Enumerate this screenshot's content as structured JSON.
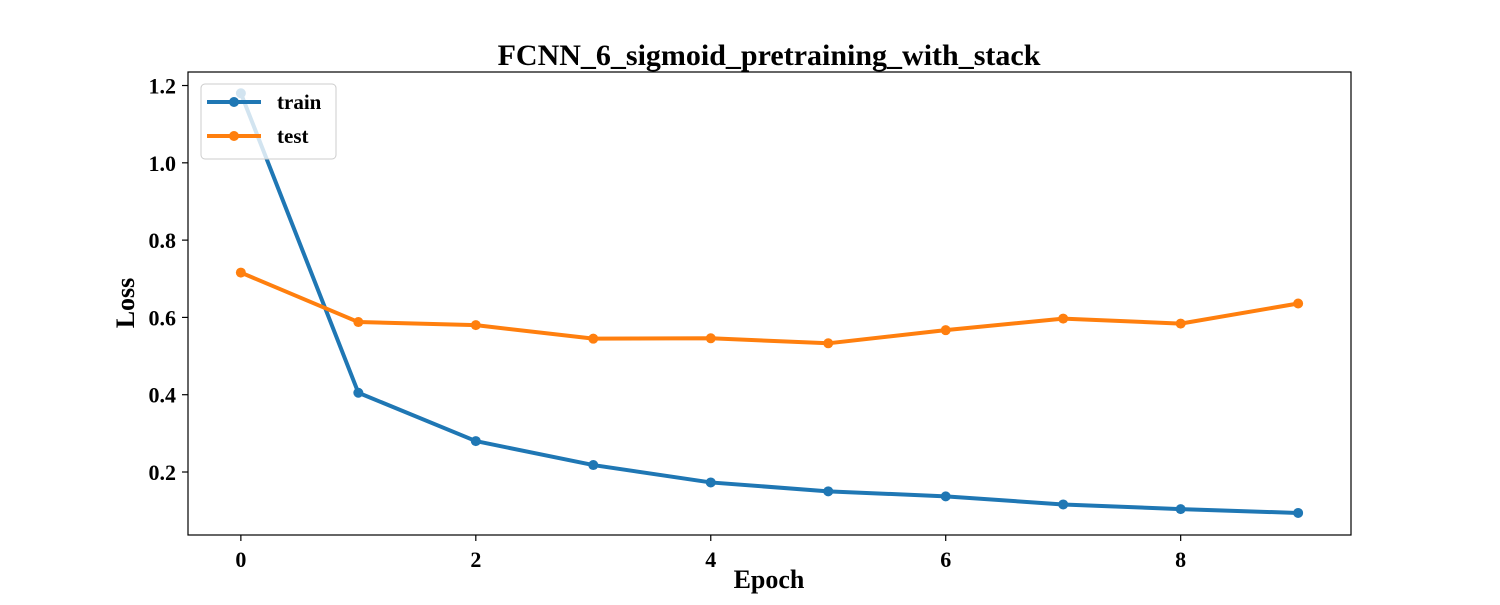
{
  "chart_data": {
    "type": "line",
    "title": "FCNN_6_sigmoid_pretraining_with_stack",
    "xlabel": "Epoch",
    "ylabel": "Loss",
    "xlim": [
      -0.45,
      9.45
    ],
    "ylim": [
      0.037,
      1.235
    ],
    "x": [
      0,
      1,
      2,
      3,
      4,
      5,
      6,
      7,
      8,
      9
    ],
    "x_ticks": [
      0,
      2,
      4,
      6,
      8
    ],
    "x_tick_labels": [
      "0",
      "2",
      "4",
      "6",
      "8"
    ],
    "y_ticks": [
      0.2,
      0.4,
      0.6,
      0.8,
      1.0,
      1.2
    ],
    "y_tick_labels": [
      "0.2",
      "0.4",
      "0.6",
      "0.8",
      "1.0",
      "1.2"
    ],
    "grid": false,
    "legend_position": "upper left",
    "series": [
      {
        "name": "train",
        "color": "#1f77b4",
        "marker": "circle",
        "values": [
          1.18,
          0.405,
          0.28,
          0.218,
          0.173,
          0.15,
          0.137,
          0.116,
          0.104,
          0.094
        ]
      },
      {
        "name": "test",
        "color": "#ff7f0e",
        "marker": "circle",
        "values": [
          0.716,
          0.588,
          0.58,
          0.545,
          0.546,
          0.533,
          0.567,
          0.597,
          0.584,
          0.636
        ]
      }
    ]
  }
}
